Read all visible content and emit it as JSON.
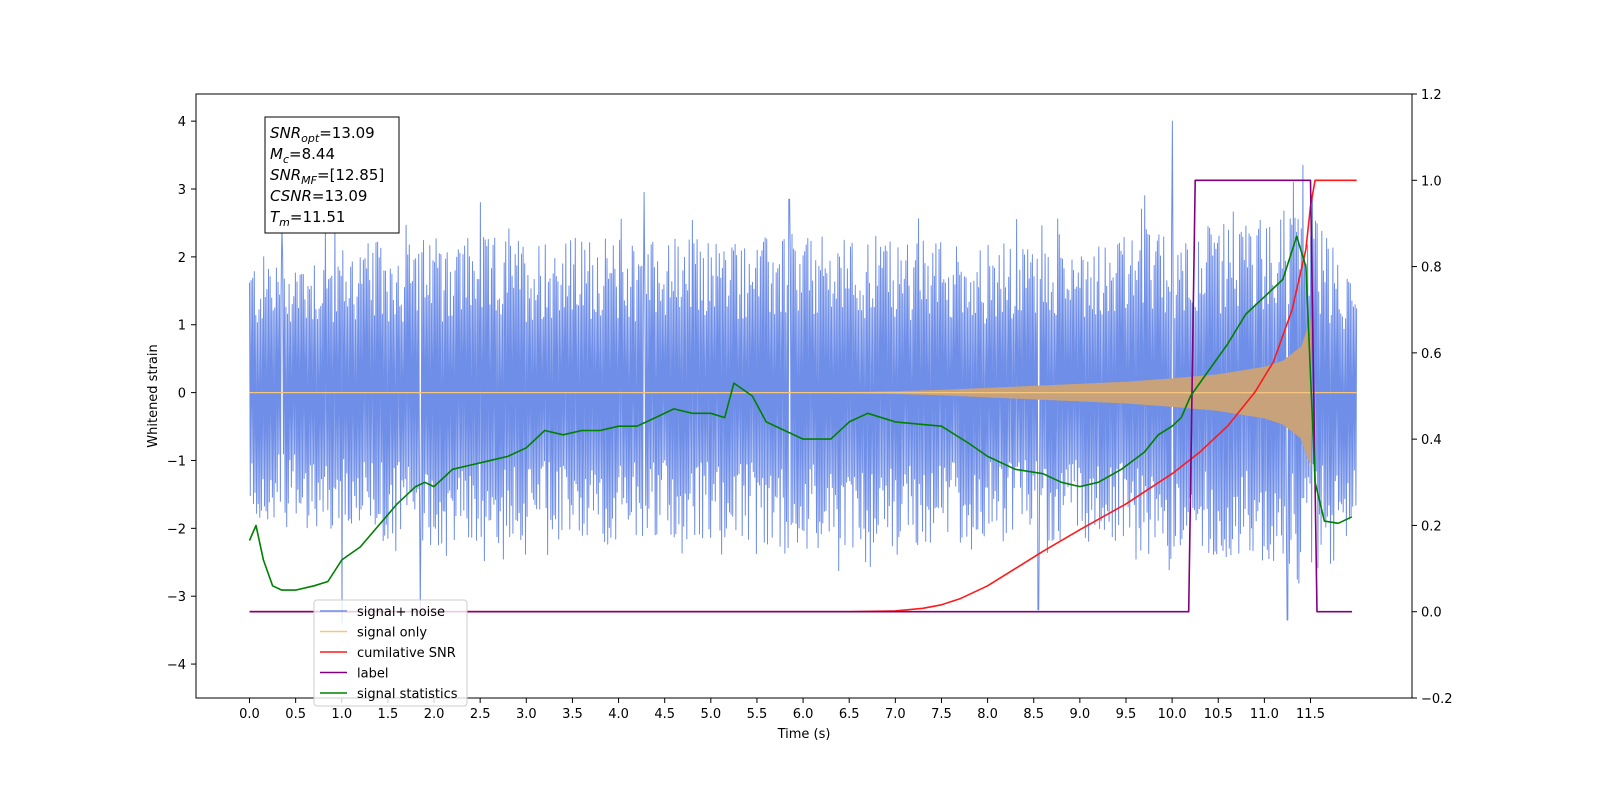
{
  "chart_data": {
    "type": "line",
    "xlabel": "Time (s)",
    "ylabel": "Whitened strain",
    "xlim": [
      -0.58,
      12.6
    ],
    "ylim_left": [
      -4.5,
      4.4
    ],
    "ylim_right": [
      -0.2,
      1.2
    ],
    "x_ticks": [
      "0.0",
      "0.5",
      "1.0",
      "1.5",
      "2.0",
      "2.5",
      "3.0",
      "3.5",
      "4.0",
      "4.5",
      "5.0",
      "5.5",
      "6.0",
      "6.5",
      "7.0",
      "7.5",
      "8.0",
      "8.5",
      "9.0",
      "9.5",
      "10.0",
      "10.5",
      "11.0",
      "11.5"
    ],
    "y_ticks_left": [
      "4",
      "3",
      "2",
      "1",
      "0",
      "−1",
      "−2",
      "−3",
      "−4"
    ],
    "y_ticks_right": [
      "1.2",
      "1.0",
      "0.8",
      "0.6",
      "0.4",
      "0.2",
      "0.0",
      "−0.2"
    ],
    "grid": false,
    "legend_position": "lower-left",
    "colors": {
      "noise": "#6f8ee8",
      "signal": "#f5c77e",
      "signal_fill": "#c8a27a",
      "csnr": "#ff1a1a",
      "label": "#800080",
      "stats": "#008000"
    },
    "annotation": [
      {
        "sym": "SNR",
        "sub": "opt",
        "value": "=13.09"
      },
      {
        "sym": "M",
        "sub": "c",
        "value": "=8.44"
      },
      {
        "sym": "SNR",
        "sub": "MF",
        "value": "=[12.85]"
      },
      {
        "sym": "CSNR",
        "sub": "",
        "value": "=13.09"
      },
      {
        "sym": "T",
        "sub": "m",
        "value": "=11.51"
      }
    ],
    "series": [
      {
        "name": "signal+ noise",
        "axis": "left",
        "envelope_t": [
          0.0,
          1.0,
          2.0,
          3.0,
          4.0,
          5.0,
          6.0,
          7.0,
          8.0,
          9.0,
          10.0,
          10.5,
          11.0,
          11.3,
          11.5,
          11.6,
          11.9,
          12.0
        ],
        "envelope_upper": [
          2.0,
          2.2,
          2.3,
          2.3,
          2.3,
          2.3,
          2.3,
          2.3,
          2.2,
          2.3,
          2.4,
          2.5,
          2.6,
          2.8,
          3.1,
          2.5,
          1.8,
          1.6
        ],
        "envelope_lower": [
          -1.9,
          -2.1,
          -2.3,
          -2.2,
          -2.2,
          -2.2,
          -2.3,
          -2.3,
          -2.2,
          -2.2,
          -2.3,
          -2.4,
          -2.5,
          -2.6,
          -2.2,
          -2.3,
          -2.1,
          -2.0
        ],
        "spikes": [
          {
            "x": 0.35,
            "y": 2.45
          },
          {
            "x": 0.82,
            "y": 2.45
          },
          {
            "x": 1.85,
            "y": 2.55
          },
          {
            "x": 2.5,
            "y": 2.8
          },
          {
            "x": 4.28,
            "y": 2.95
          },
          {
            "x": 5.85,
            "y": 2.85
          },
          {
            "x": 9.7,
            "y": 2.9
          },
          {
            "x": 10.0,
            "y": 4.0
          },
          {
            "x": 11.42,
            "y": 3.35
          },
          {
            "x": 1.0,
            "y": -3.4
          },
          {
            "x": 1.85,
            "y": -3.2
          },
          {
            "x": 8.55,
            "y": -3.2
          },
          {
            "x": 11.25,
            "y": -3.35
          }
        ]
      },
      {
        "name": "signal only",
        "axis": "left",
        "envelope_t": [
          0.0,
          6.0,
          7.0,
          7.5,
          8.0,
          8.5,
          9.0,
          9.5,
          10.0,
          10.5,
          11.0,
          11.2,
          11.4,
          11.5,
          11.52,
          12.0
        ],
        "envelope_amp": [
          0.0,
          0.0,
          0.02,
          0.04,
          0.07,
          0.1,
          0.13,
          0.16,
          0.21,
          0.27,
          0.38,
          0.47,
          0.68,
          1.1,
          0.0,
          0.0
        ]
      },
      {
        "name": "cumilative SNR",
        "axis": "right",
        "x": [
          0.0,
          6.5,
          7.0,
          7.3,
          7.5,
          7.7,
          8.0,
          8.3,
          8.6,
          9.0,
          9.5,
          10.0,
          10.3,
          10.6,
          10.9,
          11.1,
          11.3,
          11.45,
          11.5,
          11.55,
          12.0
        ],
        "y": [
          0.0,
          0.0,
          0.002,
          0.008,
          0.016,
          0.03,
          0.06,
          0.1,
          0.14,
          0.19,
          0.25,
          0.32,
          0.37,
          0.43,
          0.51,
          0.58,
          0.7,
          0.84,
          0.94,
          1.0,
          1.0
        ]
      },
      {
        "name": "label",
        "axis": "right",
        "x": [
          0.0,
          10.18,
          10.25,
          11.5,
          11.57,
          11.95
        ],
        "y": [
          0.0,
          0.0,
          1.0,
          1.0,
          0.0,
          0.0
        ]
      },
      {
        "name": "signal statistics",
        "axis": "right",
        "x": [
          0.0,
          0.07,
          0.15,
          0.25,
          0.35,
          0.5,
          0.7,
          0.85,
          1.0,
          1.2,
          1.4,
          1.6,
          1.8,
          1.9,
          2.0,
          2.1,
          2.2,
          2.4,
          2.6,
          2.8,
          3.0,
          3.2,
          3.4,
          3.6,
          3.8,
          4.0,
          4.2,
          4.4,
          4.6,
          4.8,
          5.0,
          5.15,
          5.25,
          5.45,
          5.6,
          5.8,
          6.0,
          6.3,
          6.5,
          6.7,
          7.0,
          7.5,
          7.8,
          8.0,
          8.3,
          8.6,
          8.8,
          9.0,
          9.2,
          9.45,
          9.7,
          9.85,
          10.0,
          10.1,
          10.2,
          10.4,
          10.6,
          10.8,
          11.0,
          11.2,
          11.35,
          11.45,
          11.55,
          11.65,
          11.8,
          11.95
        ],
        "y": [
          0.165,
          0.2,
          0.12,
          0.06,
          0.05,
          0.05,
          0.06,
          0.07,
          0.12,
          0.15,
          0.2,
          0.25,
          0.29,
          0.3,
          0.29,
          0.31,
          0.33,
          0.34,
          0.35,
          0.36,
          0.38,
          0.42,
          0.41,
          0.42,
          0.42,
          0.43,
          0.43,
          0.45,
          0.47,
          0.46,
          0.46,
          0.45,
          0.53,
          0.5,
          0.44,
          0.42,
          0.4,
          0.4,
          0.44,
          0.46,
          0.44,
          0.43,
          0.39,
          0.36,
          0.33,
          0.32,
          0.3,
          0.29,
          0.3,
          0.33,
          0.37,
          0.41,
          0.43,
          0.45,
          0.5,
          0.56,
          0.62,
          0.69,
          0.73,
          0.77,
          0.87,
          0.8,
          0.3,
          0.21,
          0.205,
          0.22
        ]
      }
    ]
  }
}
